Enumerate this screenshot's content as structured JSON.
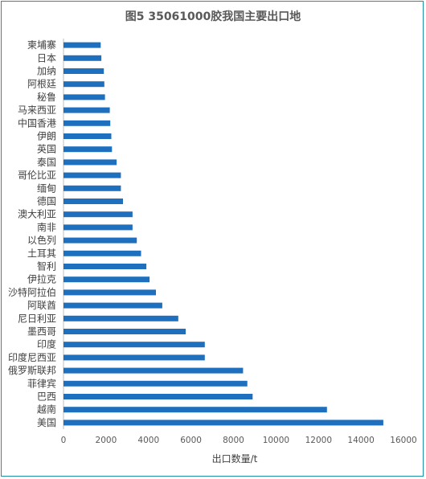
{
  "chart_data": {
    "type": "bar",
    "orientation": "horizontal",
    "title": "图5  35061000胶我国主要出口地",
    "xlabel": "出口数量/t",
    "ylabel": "",
    "xlim": [
      0,
      16000
    ],
    "xticks": [
      "0",
      "2000",
      "4000",
      "6000",
      "8000",
      "10000",
      "12000",
      "14000",
      "16000"
    ],
    "grid": false,
    "legend": "none",
    "bar_color": "#1f6fbf",
    "categories": [
      "柬埔寨",
      "日本",
      "加纳",
      "阿根廷",
      "秘鲁",
      "马来西亚",
      "中国香港",
      "伊朗",
      "英国",
      "泰国",
      "哥伦比亚",
      "缅甸",
      "德国",
      "澳大利亚",
      "南非",
      "以色列",
      "土耳其",
      "智利",
      "伊拉克",
      "沙特阿拉伯",
      "阿联酋",
      "尼日利亚",
      "墨西哥",
      "印度",
      "印度尼西亚",
      "俄罗斯联邦",
      "菲律宾",
      "巴西",
      "越南",
      "美国"
    ],
    "values": [
      1750,
      1780,
      1900,
      1920,
      1950,
      2180,
      2200,
      2250,
      2280,
      2500,
      2700,
      2700,
      2800,
      3250,
      3250,
      3450,
      3650,
      3900,
      4050,
      4350,
      4650,
      5400,
      5750,
      6650,
      6650,
      8450,
      8650,
      8900,
      12400,
      15050
    ]
  }
}
